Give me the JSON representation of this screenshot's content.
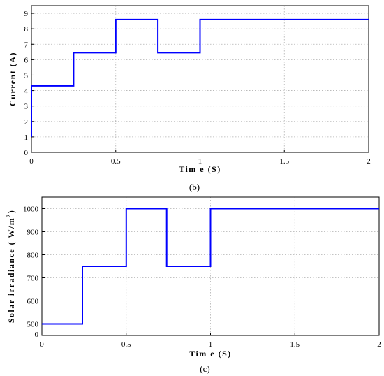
{
  "colors": {
    "series": "#0000ff",
    "grid": "#b0b0b0",
    "axis": "#000000"
  },
  "chart_data": [
    {
      "type": "line",
      "caption": "(b)",
      "xlabel": "Tim e (S)",
      "ylabel": "Current (A)",
      "xlim": [
        0,
        2
      ],
      "ylim": [
        0,
        9.5
      ],
      "grid": true,
      "x_ticks": [
        0,
        0.5,
        1,
        1.5,
        2
      ],
      "x_tick_labels": [
        "0",
        "0.5",
        "1",
        "1.5",
        "2"
      ],
      "y_ticks": [
        0,
        1,
        2,
        3,
        4,
        5,
        6,
        7,
        8,
        9
      ],
      "y_tick_labels": [
        "0",
        "1",
        "2",
        "3",
        "4",
        "5",
        "6",
        "7",
        "8",
        "9"
      ],
      "series": [
        {
          "x": [
            0,
            0,
            0.25,
            0.25,
            0.5,
            0.5,
            0.75,
            0.75,
            1.0,
            1.0,
            2.0
          ],
          "y": [
            1.0,
            4.3,
            4.3,
            6.45,
            6.45,
            8.6,
            8.6,
            6.45,
            6.45,
            8.6,
            8.6
          ]
        }
      ]
    },
    {
      "type": "line",
      "caption": "(c)",
      "xlabel": "Tim e (S)",
      "ylabel": "Solar irradiance ( W/m2)",
      "xlim": [
        0,
        2
      ],
      "ylim": [
        450,
        1050
      ],
      "grid": true,
      "x_ticks": [
        0,
        0.5,
        1,
        1.5,
        2
      ],
      "x_tick_labels": [
        "0",
        "0.5",
        "1",
        "1.5",
        "2"
      ],
      "y_ticks": [
        500,
        600,
        700,
        800,
        900,
        1000
      ],
      "y_tick_labels": [
        "500",
        "600",
        "700",
        "800",
        "900",
        "1000"
      ],
      "extra_y_tick_label": "0",
      "series": [
        {
          "x": [
            0,
            0.24,
            0.24,
            0.5,
            0.5,
            0.74,
            0.74,
            1.0,
            1.0,
            2.0
          ],
          "y": [
            500,
            500,
            750,
            750,
            1000,
            1000,
            750,
            750,
            1000,
            1000
          ]
        }
      ]
    }
  ]
}
